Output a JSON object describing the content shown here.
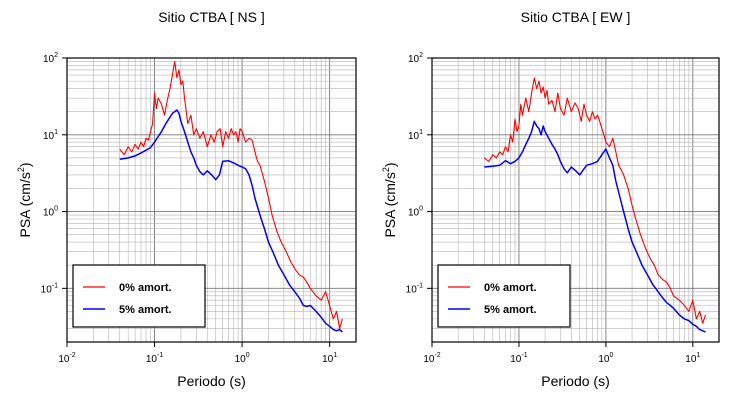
{
  "chart_data": [
    {
      "type": "line",
      "title": "Sitio CTBA [ NS ]",
      "xlabel": "Periodo (s)",
      "ylabel_base": "PSA (cm/s",
      "ylabel_sup": "2",
      "ylabel_close": ")",
      "x_scale": "log",
      "y_scale": "log",
      "xlim": [
        0.01,
        20
      ],
      "ylim": [
        0.02,
        100
      ],
      "grid": true,
      "legend_position": "bottom-left",
      "x_ticks": [
        {
          "value": 0.01,
          "base": "10",
          "exp": "-2"
        },
        {
          "value": 0.1,
          "base": "10",
          "exp": "-1"
        },
        {
          "value": 1,
          "base": "10",
          "exp": "0"
        },
        {
          "value": 10,
          "base": "10",
          "exp": "1"
        }
      ],
      "y_ticks": [
        {
          "value": 0.1,
          "base": "10",
          "exp": "-1"
        },
        {
          "value": 1,
          "base": "10",
          "exp": "0"
        },
        {
          "value": 10,
          "base": "10",
          "exp": "1"
        },
        {
          "value": 100,
          "base": "10",
          "exp": "2"
        }
      ],
      "series": [
        {
          "name": "0% amort.",
          "color": "#ff0000",
          "x": [
            0.04,
            0.045,
            0.05,
            0.055,
            0.06,
            0.065,
            0.07,
            0.075,
            0.08,
            0.085,
            0.09,
            0.095,
            0.1,
            0.105,
            0.11,
            0.12,
            0.13,
            0.14,
            0.15,
            0.16,
            0.17,
            0.18,
            0.19,
            0.2,
            0.21,
            0.22,
            0.24,
            0.26,
            0.28,
            0.3,
            0.33,
            0.36,
            0.4,
            0.44,
            0.48,
            0.52,
            0.56,
            0.6,
            0.65,
            0.7,
            0.75,
            0.8,
            0.85,
            0.9,
            0.95,
            1.0,
            1.1,
            1.2,
            1.3,
            1.4,
            1.5,
            1.6,
            1.8,
            2.0,
            2.2,
            2.5,
            2.8,
            3.2,
            3.6,
            4.0,
            4.5,
            5.0,
            5.5,
            6.0,
            7.0,
            8.0,
            9.0,
            10.0,
            11.0,
            12.0,
            13.0,
            14.0
          ],
          "y": [
            6.5,
            5.5,
            7.0,
            6.0,
            7.5,
            6.5,
            8.0,
            7.0,
            9.0,
            8.5,
            11,
            14,
            35,
            22,
            30,
            25,
            18,
            28,
            40,
            60,
            90,
            55,
            70,
            45,
            50,
            30,
            14,
            18,
            10,
            12,
            9,
            11,
            7,
            10,
            8,
            11,
            12,
            7,
            11,
            9,
            12,
            10,
            11,
            8,
            12,
            11,
            8,
            9,
            8.5,
            6,
            4.5,
            4,
            2.5,
            1.5,
            0.9,
            0.55,
            0.4,
            0.3,
            0.22,
            0.18,
            0.15,
            0.14,
            0.12,
            0.1,
            0.08,
            0.07,
            0.09,
            0.06,
            0.04,
            0.05,
            0.03,
            0.04
          ]
        },
        {
          "name": "5% amort.",
          "color": "#0000ff",
          "x": [
            0.04,
            0.05,
            0.06,
            0.07,
            0.08,
            0.09,
            0.1,
            0.11,
            0.12,
            0.13,
            0.14,
            0.15,
            0.16,
            0.17,
            0.18,
            0.19,
            0.2,
            0.22,
            0.24,
            0.26,
            0.28,
            0.3,
            0.33,
            0.36,
            0.4,
            0.45,
            0.5,
            0.55,
            0.6,
            0.7,
            0.8,
            0.9,
            1.0,
            1.1,
            1.2,
            1.3,
            1.4,
            1.6,
            1.8,
            2.0,
            2.3,
            2.6,
            3.0,
            3.5,
            4.0,
            4.5,
            5.0,
            5.5,
            6.0,
            7.0,
            8.0,
            9.0,
            10.0,
            11.0,
            12.0,
            13.0,
            14.0
          ],
          "y": [
            4.8,
            5.0,
            5.3,
            5.8,
            6.3,
            6.8,
            8.0,
            9.5,
            11,
            13,
            15,
            17,
            19,
            20,
            21,
            19,
            15,
            11,
            8,
            6,
            5,
            4,
            3.3,
            3.0,
            3.4,
            3.0,
            2.6,
            3.0,
            4.5,
            4.6,
            4.3,
            4.0,
            3.8,
            3.6,
            3.0,
            2.2,
            1.5,
            0.9,
            0.6,
            0.4,
            0.28,
            0.2,
            0.15,
            0.11,
            0.09,
            0.075,
            0.06,
            0.058,
            0.06,
            0.05,
            0.042,
            0.035,
            0.032,
            0.029,
            0.028,
            0.029,
            0.027
          ]
        }
      ]
    },
    {
      "type": "line",
      "title": "Sitio CTBA [ EW ]",
      "xlabel": "Periodo (s)",
      "ylabel_base": "PSA (cm/s",
      "ylabel_sup": "2",
      "ylabel_close": ")",
      "x_scale": "log",
      "y_scale": "log",
      "xlim": [
        0.01,
        20
      ],
      "ylim": [
        0.02,
        100
      ],
      "grid": true,
      "legend_position": "bottom-left",
      "x_ticks": [
        {
          "value": 0.01,
          "base": "10",
          "exp": "-2"
        },
        {
          "value": 0.1,
          "base": "10",
          "exp": "-1"
        },
        {
          "value": 1,
          "base": "10",
          "exp": "0"
        },
        {
          "value": 10,
          "base": "10",
          "exp": "1"
        }
      ],
      "y_ticks": [
        {
          "value": 0.1,
          "base": "10",
          "exp": "-1"
        },
        {
          "value": 1,
          "base": "10",
          "exp": "0"
        },
        {
          "value": 10,
          "base": "10",
          "exp": "1"
        },
        {
          "value": 100,
          "base": "10",
          "exp": "2"
        }
      ],
      "series": [
        {
          "name": "0% amort.",
          "color": "#ff0000",
          "x": [
            0.04,
            0.045,
            0.05,
            0.055,
            0.06,
            0.065,
            0.07,
            0.075,
            0.08,
            0.085,
            0.09,
            0.095,
            0.1,
            0.105,
            0.11,
            0.12,
            0.13,
            0.14,
            0.15,
            0.16,
            0.17,
            0.18,
            0.19,
            0.2,
            0.21,
            0.22,
            0.24,
            0.26,
            0.28,
            0.3,
            0.33,
            0.36,
            0.4,
            0.44,
            0.48,
            0.52,
            0.56,
            0.6,
            0.65,
            0.7,
            0.75,
            0.8,
            0.85,
            0.9,
            0.95,
            1.0,
            1.1,
            1.2,
            1.3,
            1.4,
            1.5,
            1.6,
            1.8,
            2.0,
            2.2,
            2.5,
            2.8,
            3.2,
            3.6,
            4.0,
            4.5,
            5.0,
            5.5,
            6.0,
            7.0,
            8.0,
            9.0,
            10.0,
            11.0,
            12.0,
            13.0,
            14.0
          ],
          "y": [
            5.0,
            4.5,
            5.5,
            5.0,
            6.0,
            5.5,
            7.0,
            6.0,
            10,
            8.0,
            16,
            11,
            13,
            25,
            18,
            30,
            20,
            35,
            55,
            40,
            50,
            35,
            42,
            30,
            38,
            25,
            28,
            20,
            35,
            22,
            18,
            30,
            20,
            26,
            22,
            15,
            25,
            18,
            15,
            20,
            16,
            18,
            15,
            12,
            10,
            8,
            7,
            9,
            6,
            4,
            3.5,
            3,
            2,
            1.2,
            0.8,
            0.5,
            0.35,
            0.25,
            0.2,
            0.15,
            0.13,
            0.12,
            0.1,
            0.08,
            0.07,
            0.06,
            0.05,
            0.07,
            0.04,
            0.05,
            0.035,
            0.045
          ]
        },
        {
          "name": "5% amort.",
          "color": "#0000ff",
          "x": [
            0.04,
            0.05,
            0.06,
            0.07,
            0.08,
            0.09,
            0.1,
            0.11,
            0.12,
            0.13,
            0.14,
            0.15,
            0.16,
            0.17,
            0.18,
            0.19,
            0.2,
            0.22,
            0.24,
            0.26,
            0.28,
            0.3,
            0.33,
            0.36,
            0.4,
            0.45,
            0.5,
            0.55,
            0.6,
            0.7,
            0.8,
            0.9,
            1.0,
            1.1,
            1.2,
            1.3,
            1.4,
            1.6,
            1.8,
            2.0,
            2.3,
            2.6,
            3.0,
            3.5,
            4.0,
            4.5,
            5.0,
            5.5,
            6.0,
            7.0,
            8.0,
            9.0,
            10.0,
            11.0,
            12.0,
            13.0,
            14.0
          ],
          "y": [
            3.8,
            3.9,
            4.0,
            4.6,
            4.2,
            4.5,
            5.0,
            6.0,
            7.5,
            9.0,
            11,
            15,
            13,
            12,
            10,
            13,
            11,
            9,
            7.5,
            6.5,
            5.5,
            4.5,
            3.6,
            3.2,
            3.8,
            3.4,
            3.0,
            3.5,
            4.0,
            4.2,
            4.5,
            5.5,
            6.5,
            5.0,
            4.0,
            2.5,
            1.8,
            1.0,
            0.6,
            0.4,
            0.28,
            0.2,
            0.15,
            0.11,
            0.09,
            0.075,
            0.065,
            0.06,
            0.055,
            0.045,
            0.04,
            0.038,
            0.034,
            0.032,
            0.029,
            0.028,
            0.027
          ]
        }
      ]
    }
  ]
}
